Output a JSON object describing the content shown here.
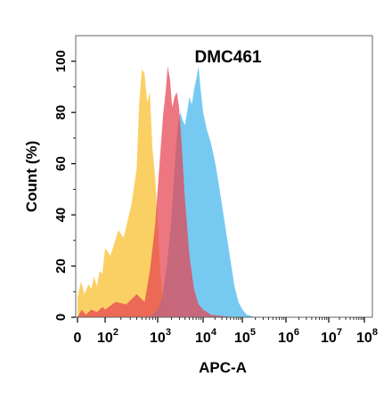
{
  "chart_data": {
    "type": "area",
    "title": "DMC461",
    "xlabel": "APC-A",
    "ylabel": "Count (%)",
    "ylim": [
      0,
      110
    ],
    "yticks": [
      0,
      20,
      40,
      60,
      80,
      100
    ],
    "xscale": "biexponential",
    "xticks": [
      {
        "base": "0",
        "exp": ""
      },
      {
        "base": "10",
        "exp": "2"
      },
      {
        "base": "10",
        "exp": "3"
      },
      {
        "base": "10",
        "exp": "4"
      },
      {
        "base": "10",
        "exp": "5"
      },
      {
        "base": "10",
        "exp": "6"
      },
      {
        "base": "10",
        "exp": "7"
      },
      {
        "base": "10",
        "exp": "8"
      }
    ],
    "grid": false,
    "legend": "none",
    "series": [
      {
        "color": "#f9c84a",
        "opacity": 0.85,
        "points": [
          [
            0,
            8
          ],
          [
            0.25,
            14
          ],
          [
            0.5,
            9
          ],
          [
            0.8,
            13
          ],
          [
            1.0,
            11
          ],
          [
            1.2,
            16
          ],
          [
            1.4,
            12
          ],
          [
            1.6,
            18
          ],
          [
            1.8,
            17
          ],
          [
            2.0,
            27
          ],
          [
            2.1,
            24
          ],
          [
            2.25,
            34
          ],
          [
            2.35,
            31
          ],
          [
            2.5,
            44
          ],
          [
            2.6,
            58
          ],
          [
            2.65,
            84
          ],
          [
            2.7,
            97
          ],
          [
            2.75,
            95
          ],
          [
            2.8,
            84
          ],
          [
            2.85,
            88
          ],
          [
            2.9,
            66
          ],
          [
            2.95,
            55
          ],
          [
            3.0,
            38
          ],
          [
            3.05,
            20
          ],
          [
            3.1,
            8
          ],
          [
            3.2,
            3
          ],
          [
            3.3,
            1.5
          ],
          [
            3.4,
            0.5
          ],
          [
            3.5,
            0
          ]
        ]
      },
      {
        "color": "#5ec1ef",
        "opacity": 0.85,
        "points": [
          [
            2.8,
            0
          ],
          [
            2.9,
            1
          ],
          [
            3.0,
            3
          ],
          [
            3.1,
            8
          ],
          [
            3.2,
            20
          ],
          [
            3.3,
            38
          ],
          [
            3.35,
            52
          ],
          [
            3.4,
            66
          ],
          [
            3.45,
            76
          ],
          [
            3.5,
            80
          ],
          [
            3.55,
            77
          ],
          [
            3.6,
            75
          ],
          [
            3.7,
            86
          ],
          [
            3.75,
            83
          ],
          [
            3.8,
            89
          ],
          [
            3.85,
            93
          ],
          [
            3.9,
            98
          ],
          [
            3.95,
            88
          ],
          [
            4.0,
            80
          ],
          [
            4.1,
            73
          ],
          [
            4.2,
            68
          ],
          [
            4.3,
            61
          ],
          [
            4.4,
            52
          ],
          [
            4.5,
            42
          ],
          [
            4.6,
            32
          ],
          [
            4.7,
            22
          ],
          [
            4.8,
            12
          ],
          [
            4.9,
            6
          ],
          [
            5.0,
            3
          ],
          [
            5.1,
            1
          ],
          [
            5.3,
            0
          ]
        ]
      },
      {
        "color": "#e6434f",
        "opacity": 0.72,
        "points": [
          [
            0,
            0
          ],
          [
            0.3,
            3
          ],
          [
            0.6,
            1
          ],
          [
            1.0,
            3
          ],
          [
            1.4,
            2
          ],
          [
            1.8,
            4
          ],
          [
            2.0,
            3
          ],
          [
            2.2,
            6
          ],
          [
            2.4,
            5
          ],
          [
            2.6,
            9
          ],
          [
            2.75,
            6
          ],
          [
            2.85,
            18
          ],
          [
            2.95,
            36
          ],
          [
            3.05,
            62
          ],
          [
            3.12,
            79
          ],
          [
            3.18,
            89
          ],
          [
            3.22,
            98
          ],
          [
            3.27,
            93
          ],
          [
            3.32,
            82
          ],
          [
            3.37,
            86
          ],
          [
            3.42,
            88
          ],
          [
            3.47,
            82
          ],
          [
            3.52,
            70
          ],
          [
            3.6,
            46
          ],
          [
            3.7,
            24
          ],
          [
            3.8,
            11
          ],
          [
            3.9,
            5
          ],
          [
            4.0,
            3
          ],
          [
            4.2,
            1
          ],
          [
            4.5,
            0.5
          ],
          [
            4.8,
            0
          ]
        ]
      }
    ]
  }
}
